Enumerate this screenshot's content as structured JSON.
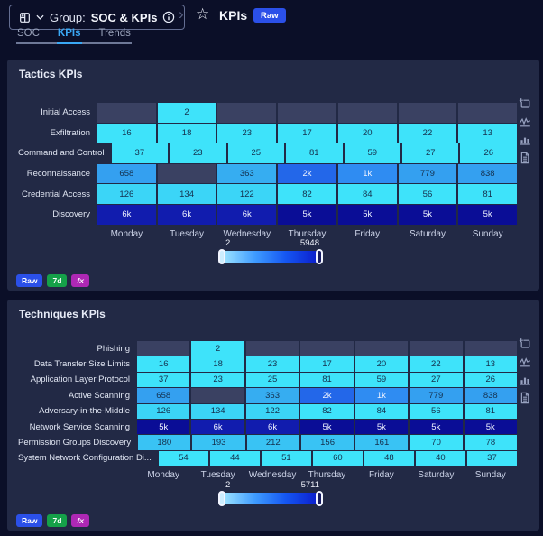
{
  "header": {
    "group_label_prefix": "Group:",
    "group_name": "SOC & KPIs",
    "breadcrumb_separator": "›",
    "star_icon": "star-outline-icon",
    "page_title": "KPIs",
    "raw_badge": "Raw",
    "tabs": [
      {
        "label": "SOC",
        "active": false
      },
      {
        "label": "KPIs",
        "active": true
      },
      {
        "label": "Trends",
        "active": false
      }
    ]
  },
  "colors": {
    "page_bg": "#0b0f28",
    "panel_bg": "#222945",
    "active_tab": "#3aa8f5",
    "raw_chip_bg": "#2b50e8",
    "badges": {
      "Raw": "#2b50e8",
      "7d": "#15a149",
      "fx": "#ae28b4"
    }
  },
  "heatmap_style": {
    "empty_cell": "#3a4162",
    "color_scale": [
      {
        "gte": 5500,
        "bg": "#111cae",
        "fg": "#eef2ff"
      },
      {
        "gte": 4500,
        "bg": "#0a0d96",
        "fg": "#eef2ff"
      },
      {
        "gte": 2000,
        "bg": "#2367e9",
        "fg": "#eef2ff"
      },
      {
        "gte": 1000,
        "bg": "#2f8cf2",
        "fg": "#eef2ff"
      },
      {
        "gte": 600,
        "bg": "#34a0f0",
        "fg": "#14304e"
      },
      {
        "gte": 300,
        "bg": "#36adf1",
        "fg": "#14304e"
      },
      {
        "gte": 150,
        "bg": "#39c3f4",
        "fg": "#142f4c"
      },
      {
        "gte": 100,
        "bg": "#3bd5f7",
        "fg": "#142f4c"
      },
      {
        "gte": 0,
        "bg": "#3ee3fa",
        "fg": "#142f4c"
      }
    ]
  },
  "panel_icons": [
    "crop-icon",
    "line-chart-icon",
    "bar-chart-icon",
    "document-icon"
  ],
  "chart_data": [
    {
      "type": "heatmap",
      "title": "Tactics KPIs",
      "columns": [
        "Monday",
        "Tuesday",
        "Wednesday",
        "Thursday",
        "Friday",
        "Saturday",
        "Sunday"
      ],
      "rows": [
        "Initial Access",
        "Exfiltration",
        "Command and Control",
        "Reconnaissance",
        "Credential Access",
        "Discovery"
      ],
      "cells": [
        [
          "",
          "2",
          "",
          "",
          "",
          "",
          ""
        ],
        [
          "16",
          "18",
          "23",
          "17",
          "20",
          "22",
          "13"
        ],
        [
          "37",
          "23",
          "25",
          "81",
          "59",
          "27",
          "26"
        ],
        [
          "658",
          "",
          "363",
          "2k",
          "1k",
          "779",
          "838"
        ],
        [
          "126",
          "134",
          "122",
          "82",
          "84",
          "56",
          "81"
        ],
        [
          "6k",
          "6k",
          "6k",
          "5k",
          "5k",
          "5k",
          "5k"
        ]
      ],
      "slider": {
        "min": "2",
        "max": "5948"
      },
      "badges": [
        "Raw",
        "7d",
        "fx"
      ]
    },
    {
      "type": "heatmap",
      "title": "Techniques KPIs",
      "columns": [
        "Monday",
        "Tuesday",
        "Wednesday",
        "Thursday",
        "Friday",
        "Saturday",
        "Sunday"
      ],
      "rows": [
        "Phishing",
        "Data Transfer Size Limits",
        "Application Layer Protocol",
        "Active Scanning",
        "Adversary-in-the-Middle",
        "Network Service Scanning",
        "Permission Groups Discovery",
        "System Network Configuration Di..."
      ],
      "cells": [
        [
          "",
          "2",
          "",
          "",
          "",
          "",
          ""
        ],
        [
          "16",
          "18",
          "23",
          "17",
          "20",
          "22",
          "13"
        ],
        [
          "37",
          "23",
          "25",
          "81",
          "59",
          "27",
          "26"
        ],
        [
          "658",
          "",
          "363",
          "2k",
          "1k",
          "779",
          "838"
        ],
        [
          "126",
          "134",
          "122",
          "82",
          "84",
          "56",
          "81"
        ],
        [
          "5k",
          "6k",
          "6k",
          "5k",
          "5k",
          "5k",
          "5k"
        ],
        [
          "180",
          "193",
          "212",
          "156",
          "161",
          "70",
          "78"
        ],
        [
          "54",
          "44",
          "51",
          "60",
          "48",
          "40",
          "37"
        ]
      ],
      "slider": {
        "min": "2",
        "max": "5711"
      },
      "badges": [
        "Raw",
        "7d",
        "fx"
      ]
    }
  ]
}
